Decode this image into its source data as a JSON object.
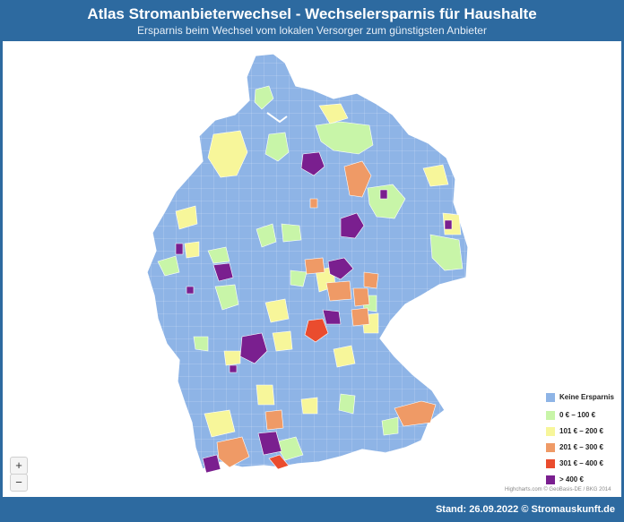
{
  "header": {
    "title": "Atlas Stromanbieterwechsel - Wechselersparnis für Haushalte",
    "subtitle": "Ersparnis beim Wechsel vom lokalen Versorger zum günstigsten Anbieter"
  },
  "legend": {
    "items": [
      {
        "label": "Keine Ersparnis",
        "color": "#8eb4e6"
      },
      {
        "label": "0 € – 100 €",
        "color": "#c8f5a8"
      },
      {
        "label": "101 € – 200 €",
        "color": "#f7f69a"
      },
      {
        "label": "201 € – 300 €",
        "color": "#ef9a66"
      },
      {
        "label": "301 € – 400 €",
        "color": "#ea4c2e"
      },
      {
        "label": "> 400 €",
        "color": "#7a1f8f"
      }
    ]
  },
  "zoom": {
    "in_label": "+",
    "out_label": "−"
  },
  "credit": "Highcharts.com © GeoBasis-DE / BKG 2014",
  "footer": {
    "text": "Stand: 26.09.2022 © Stromauskunft.de"
  },
  "colors": {
    "frame": "#2d6aa0",
    "base": "#8eb4e6",
    "border": "#ffffff"
  }
}
